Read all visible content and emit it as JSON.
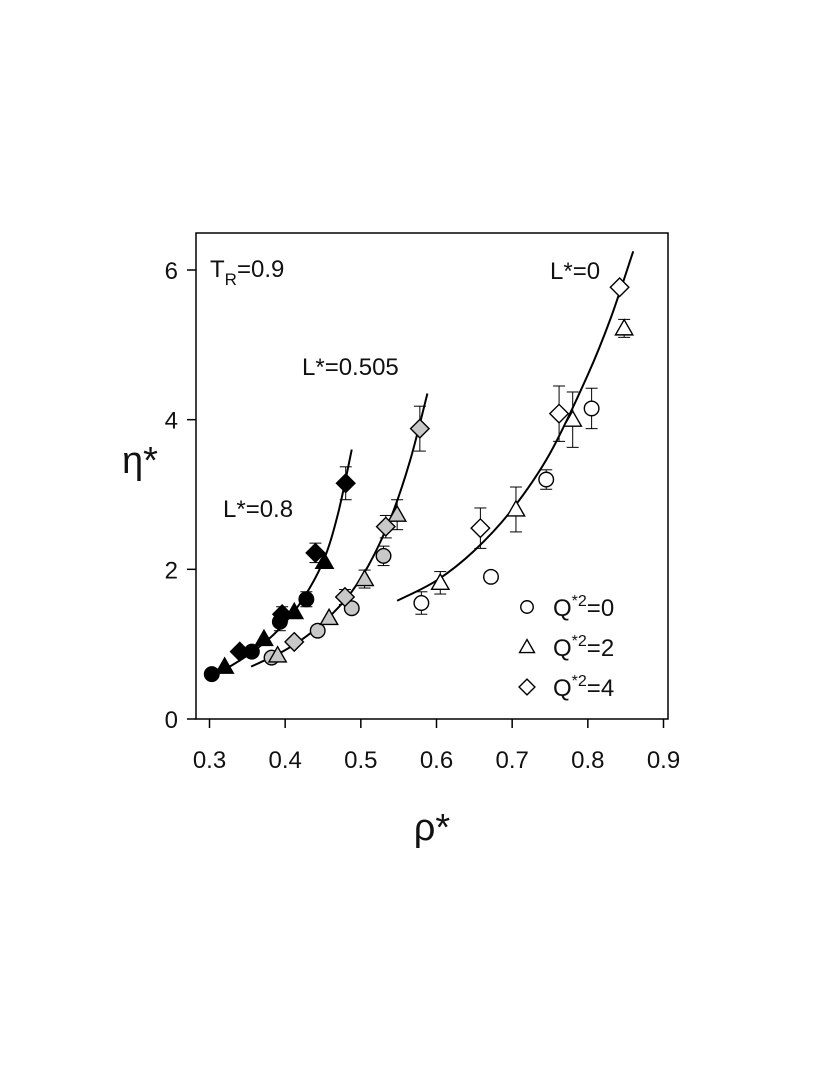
{
  "chart_data": {
    "type": "scatter",
    "title": "",
    "xlabel": "ρ*",
    "ylabel": "η*",
    "xlim": [
      0.28,
      0.9
    ],
    "ylim": [
      0,
      6.5
    ],
    "xticks": [
      0.3,
      0.4,
      0.5,
      0.6,
      0.7,
      0.8,
      0.9
    ],
    "xtick_labels": [
      "0.3",
      "0.4",
      "0.5",
      "0.6",
      "0.7",
      "0.8",
      "0.9"
    ],
    "yticks": [
      0,
      2,
      4,
      6
    ],
    "ytick_labels": [
      "0",
      "2",
      "4",
      "6"
    ],
    "grid": false,
    "legend_position": "bottom-right",
    "legend": [
      {
        "base": "Q",
        "sup": "*2",
        "tail": "=0",
        "marker": "circle"
      },
      {
        "base": "Q",
        "sup": "*2",
        "tail": "=2",
        "marker": "triangle"
      },
      {
        "base": "Q",
        "sup": "*2",
        "tail": "=4",
        "marker": "diamond"
      }
    ],
    "annotations": {
      "temperature": {
        "base": "T",
        "sub": "R",
        "tail": "=0.9"
      },
      "l0": "L*=0",
      "l0505": "L*=0.505",
      "l08": "L*=0.8"
    },
    "series": [
      {
        "group": "L*=0",
        "fill": "#ffffff",
        "marker": "circle",
        "points": [
          {
            "x": 0.58,
            "y": 1.55,
            "err": 0.15
          },
          {
            "x": 0.672,
            "y": 1.9,
            "err": 0
          },
          {
            "x": 0.745,
            "y": 3.2,
            "err": 0.13
          },
          {
            "x": 0.805,
            "y": 4.15,
            "err": 0.27
          }
        ]
      },
      {
        "group": "L*=0",
        "fill": "#ffffff",
        "marker": "triangle",
        "points": [
          {
            "x": 0.605,
            "y": 1.82,
            "err": 0.15
          },
          {
            "x": 0.705,
            "y": 2.8,
            "err": 0.3
          },
          {
            "x": 0.78,
            "y": 4.0,
            "err": 0.37
          },
          {
            "x": 0.848,
            "y": 5.22,
            "err": 0.12
          }
        ]
      },
      {
        "group": "L*=0",
        "fill": "#ffffff",
        "marker": "diamond",
        "points": [
          {
            "x": 0.658,
            "y": 2.55,
            "err": 0.27
          },
          {
            "x": 0.762,
            "y": 4.08,
            "err": 0.37
          },
          {
            "x": 0.842,
            "y": 5.77,
            "err": 0
          }
        ]
      },
      {
        "group": "L*=0.505",
        "fill": "#c8c8c8",
        "marker": "circle",
        "points": [
          {
            "x": 0.382,
            "y": 0.82,
            "err": 0
          },
          {
            "x": 0.443,
            "y": 1.18,
            "err": 0
          },
          {
            "x": 0.488,
            "y": 1.48,
            "err": 0
          },
          {
            "x": 0.53,
            "y": 2.18,
            "err": 0.13
          }
        ]
      },
      {
        "group": "L*=0.505",
        "fill": "#c8c8c8",
        "marker": "triangle",
        "points": [
          {
            "x": 0.39,
            "y": 0.85,
            "err": 0
          },
          {
            "x": 0.458,
            "y": 1.35,
            "err": 0
          },
          {
            "x": 0.505,
            "y": 1.87,
            "err": 0.12
          },
          {
            "x": 0.548,
            "y": 2.73,
            "err": 0.2
          }
        ]
      },
      {
        "group": "L*=0.505",
        "fill": "#c8c8c8",
        "marker": "diamond",
        "points": [
          {
            "x": 0.412,
            "y": 1.03,
            "err": 0
          },
          {
            "x": 0.479,
            "y": 1.63,
            "err": 0.1
          },
          {
            "x": 0.533,
            "y": 2.57,
            "err": 0.15
          },
          {
            "x": 0.578,
            "y": 3.88,
            "err": 0.3
          }
        ]
      },
      {
        "group": "L*=0.8",
        "fill": "#000000",
        "marker": "circle",
        "points": [
          {
            "x": 0.303,
            "y": 0.6,
            "err": 0
          },
          {
            "x": 0.356,
            "y": 0.9,
            "err": 0
          },
          {
            "x": 0.393,
            "y": 1.3,
            "err": 0.12
          },
          {
            "x": 0.428,
            "y": 1.6,
            "err": 0.1
          }
        ]
      },
      {
        "group": "L*=0.8",
        "fill": "#000000",
        "marker": "triangle",
        "points": [
          {
            "x": 0.32,
            "y": 0.7,
            "err": 0
          },
          {
            "x": 0.372,
            "y": 1.07,
            "err": 0
          },
          {
            "x": 0.412,
            "y": 1.43,
            "err": 0
          },
          {
            "x": 0.452,
            "y": 2.1,
            "err": 0
          }
        ]
      },
      {
        "group": "L*=0.8",
        "fill": "#000000",
        "marker": "diamond",
        "points": [
          {
            "x": 0.34,
            "y": 0.9,
            "err": 0
          },
          {
            "x": 0.396,
            "y": 1.4,
            "err": 0.1
          },
          {
            "x": 0.44,
            "y": 2.22,
            "err": 0.13
          },
          {
            "x": 0.48,
            "y": 3.15,
            "err": 0.22
          }
        ]
      }
    ],
    "curves": [
      {
        "group": "L*=0.8",
        "x": [
          0.3,
          0.33,
          0.36,
          0.39,
          0.42,
          0.45,
          0.47,
          0.488
        ],
        "y": [
          0.55,
          0.72,
          0.92,
          1.18,
          1.55,
          2.1,
          2.75,
          3.6
        ]
      },
      {
        "group": "L*=0.505",
        "x": [
          0.355,
          0.4,
          0.44,
          0.48,
          0.51,
          0.54,
          0.565,
          0.588
        ],
        "y": [
          0.7,
          0.92,
          1.2,
          1.6,
          2.05,
          2.7,
          3.45,
          4.35
        ]
      },
      {
        "group": "L*=0",
        "x": [
          0.548,
          0.6,
          0.65,
          0.7,
          0.75,
          0.8,
          0.83,
          0.86
        ],
        "y": [
          1.58,
          1.85,
          2.25,
          2.8,
          3.55,
          4.6,
          5.35,
          6.25
        ]
      }
    ]
  }
}
